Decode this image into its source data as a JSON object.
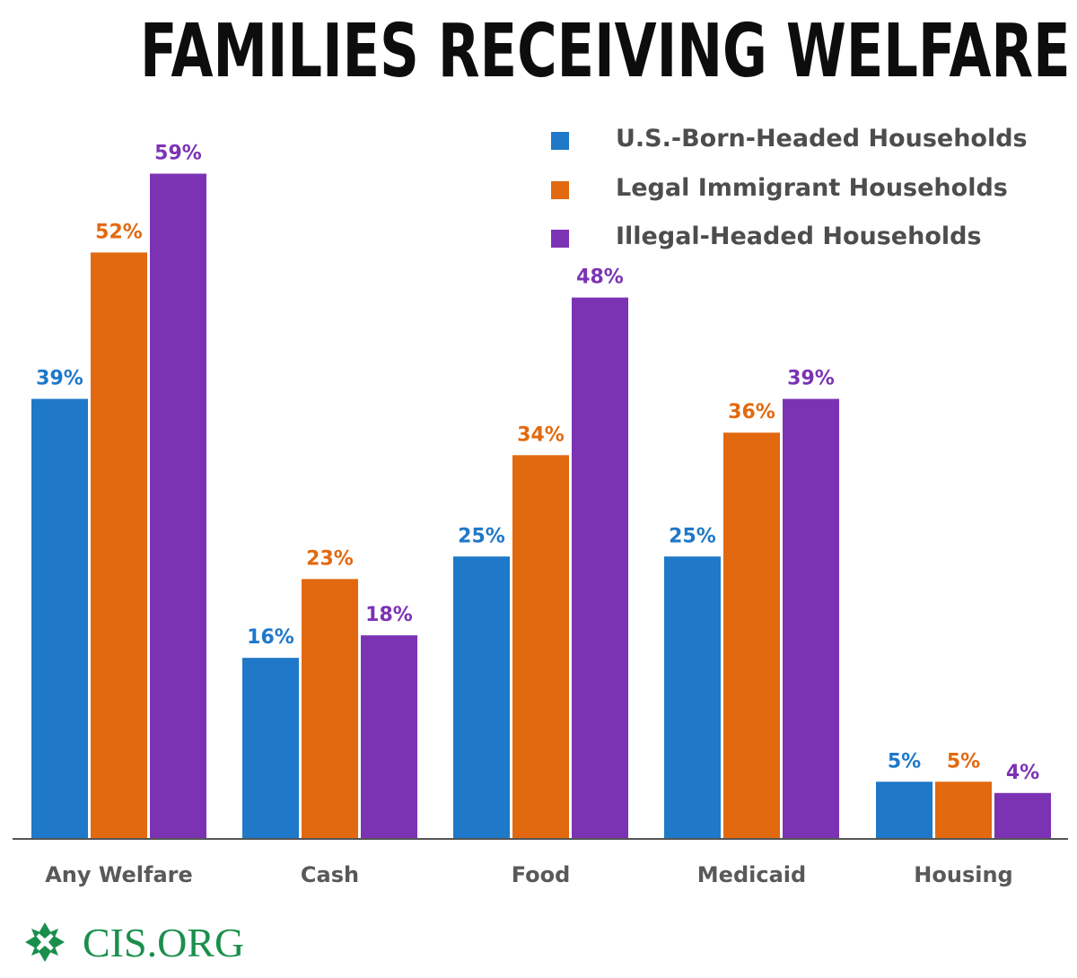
{
  "title": "FAMILIES RECEIVING WELFARE",
  "logo_text": "CIS.ORG",
  "colors": {
    "us_born": "#1f78c8",
    "legal": "#e2690f",
    "illegal": "#7b33b4",
    "axis": "#555555",
    "logo": "#1a8f4b"
  },
  "chart_data": {
    "type": "bar",
    "title": "FAMILIES RECEIVING WELFARE",
    "xlabel": "",
    "ylabel": "",
    "ylim": [
      0,
      60
    ],
    "grid": false,
    "legend_position": "top-right",
    "categories": [
      "Any Welfare",
      "Cash",
      "Food",
      "Medicaid",
      "Housing"
    ],
    "series": [
      {
        "name": "U.S.-Born-Headed Households",
        "color": "#1f78c8",
        "values": [
          39,
          16,
          25,
          25,
          5
        ],
        "labels": [
          "39%",
          "16%",
          "25%",
          "25%",
          "5%"
        ]
      },
      {
        "name": "Legal Immigrant Households",
        "color": "#e2690f",
        "values": [
          52,
          23,
          34,
          36,
          5
        ],
        "labels": [
          "52%",
          "23%",
          "34%",
          "36%",
          "5%"
        ]
      },
      {
        "name": "Illegal-Headed Households",
        "color": "#7b33b4",
        "values": [
          59,
          18,
          48,
          39,
          4
        ],
        "labels": [
          "59%",
          "18%",
          "48%",
          "39%",
          "4%"
        ]
      }
    ]
  }
}
